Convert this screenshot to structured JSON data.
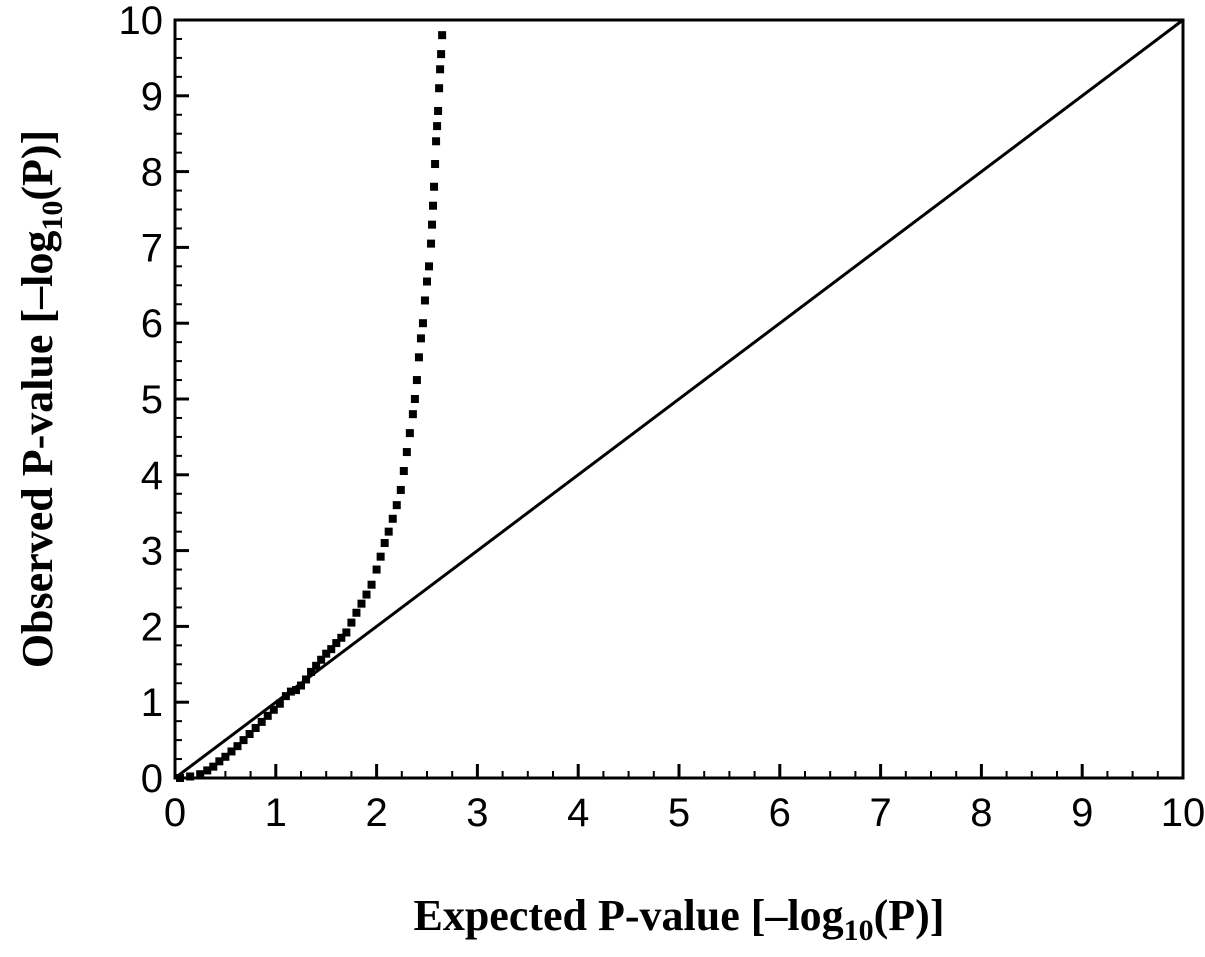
{
  "chart_data": {
    "type": "scatter",
    "title": "",
    "xlabel": {
      "prefix": "Expected P-value [–log",
      "subscript": "10",
      "suffix": "(P)]"
    },
    "ylabel": {
      "prefix": "Observed  P-value [–log",
      "subscript": "10",
      "suffix": "(P)]"
    },
    "xlim": [
      0,
      10
    ],
    "ylim": [
      0,
      10
    ],
    "x_ticks": [
      "0",
      "1",
      "2",
      "3",
      "4",
      "5",
      "6",
      "7",
      "8",
      "9",
      "10"
    ],
    "y_ticks": [
      "0",
      "1",
      "2",
      "3",
      "4",
      "5",
      "6",
      "7",
      "8",
      "9",
      "10"
    ],
    "grid": false,
    "reference_line": {
      "x": [
        0,
        10
      ],
      "y": [
        0,
        10
      ]
    },
    "series": [
      {
        "points": [
          [
            0.05,
            0.0
          ],
          [
            0.15,
            0.02
          ],
          [
            0.25,
            0.05
          ],
          [
            0.32,
            0.1
          ],
          [
            0.38,
            0.15
          ],
          [
            0.44,
            0.22
          ],
          [
            0.5,
            0.28
          ],
          [
            0.56,
            0.35
          ],
          [
            0.62,
            0.42
          ],
          [
            0.68,
            0.5
          ],
          [
            0.74,
            0.58
          ],
          [
            0.8,
            0.66
          ],
          [
            0.86,
            0.74
          ],
          [
            0.92,
            0.82
          ],
          [
            0.98,
            0.9
          ],
          [
            1.04,
            0.98
          ],
          [
            1.1,
            1.08
          ],
          [
            1.15,
            1.14
          ],
          [
            1.2,
            1.16
          ],
          [
            1.25,
            1.22
          ],
          [
            1.3,
            1.3
          ],
          [
            1.35,
            1.4
          ],
          [
            1.4,
            1.48
          ],
          [
            1.45,
            1.56
          ],
          [
            1.5,
            1.64
          ],
          [
            1.55,
            1.7
          ],
          [
            1.6,
            1.78
          ],
          [
            1.65,
            1.85
          ],
          [
            1.7,
            1.92
          ],
          [
            1.75,
            2.05
          ],
          [
            1.8,
            2.18
          ],
          [
            1.85,
            2.3
          ],
          [
            1.9,
            2.42
          ],
          [
            1.95,
            2.55
          ],
          [
            2.0,
            2.75
          ],
          [
            2.04,
            2.92
          ],
          [
            2.08,
            3.1
          ],
          [
            2.12,
            3.25
          ],
          [
            2.16,
            3.42
          ],
          [
            2.2,
            3.6
          ],
          [
            2.24,
            3.8
          ],
          [
            2.27,
            4.05
          ],
          [
            2.3,
            4.3
          ],
          [
            2.33,
            4.55
          ],
          [
            2.36,
            4.8
          ],
          [
            2.38,
            5.0
          ],
          [
            2.4,
            5.25
          ],
          [
            2.42,
            5.55
          ],
          [
            2.44,
            5.8
          ],
          [
            2.46,
            6.0
          ],
          [
            2.48,
            6.3
          ],
          [
            2.5,
            6.55
          ],
          [
            2.52,
            6.75
          ],
          [
            2.54,
            7.05
          ],
          [
            2.55,
            7.3
          ],
          [
            2.56,
            7.55
          ],
          [
            2.57,
            7.8
          ],
          [
            2.58,
            8.1
          ],
          [
            2.59,
            8.4
          ],
          [
            2.6,
            8.6
          ],
          [
            2.61,
            8.8
          ],
          [
            2.62,
            9.1
          ],
          [
            2.63,
            9.35
          ],
          [
            2.64,
            9.55
          ],
          [
            2.65,
            9.8
          ]
        ]
      }
    ]
  }
}
